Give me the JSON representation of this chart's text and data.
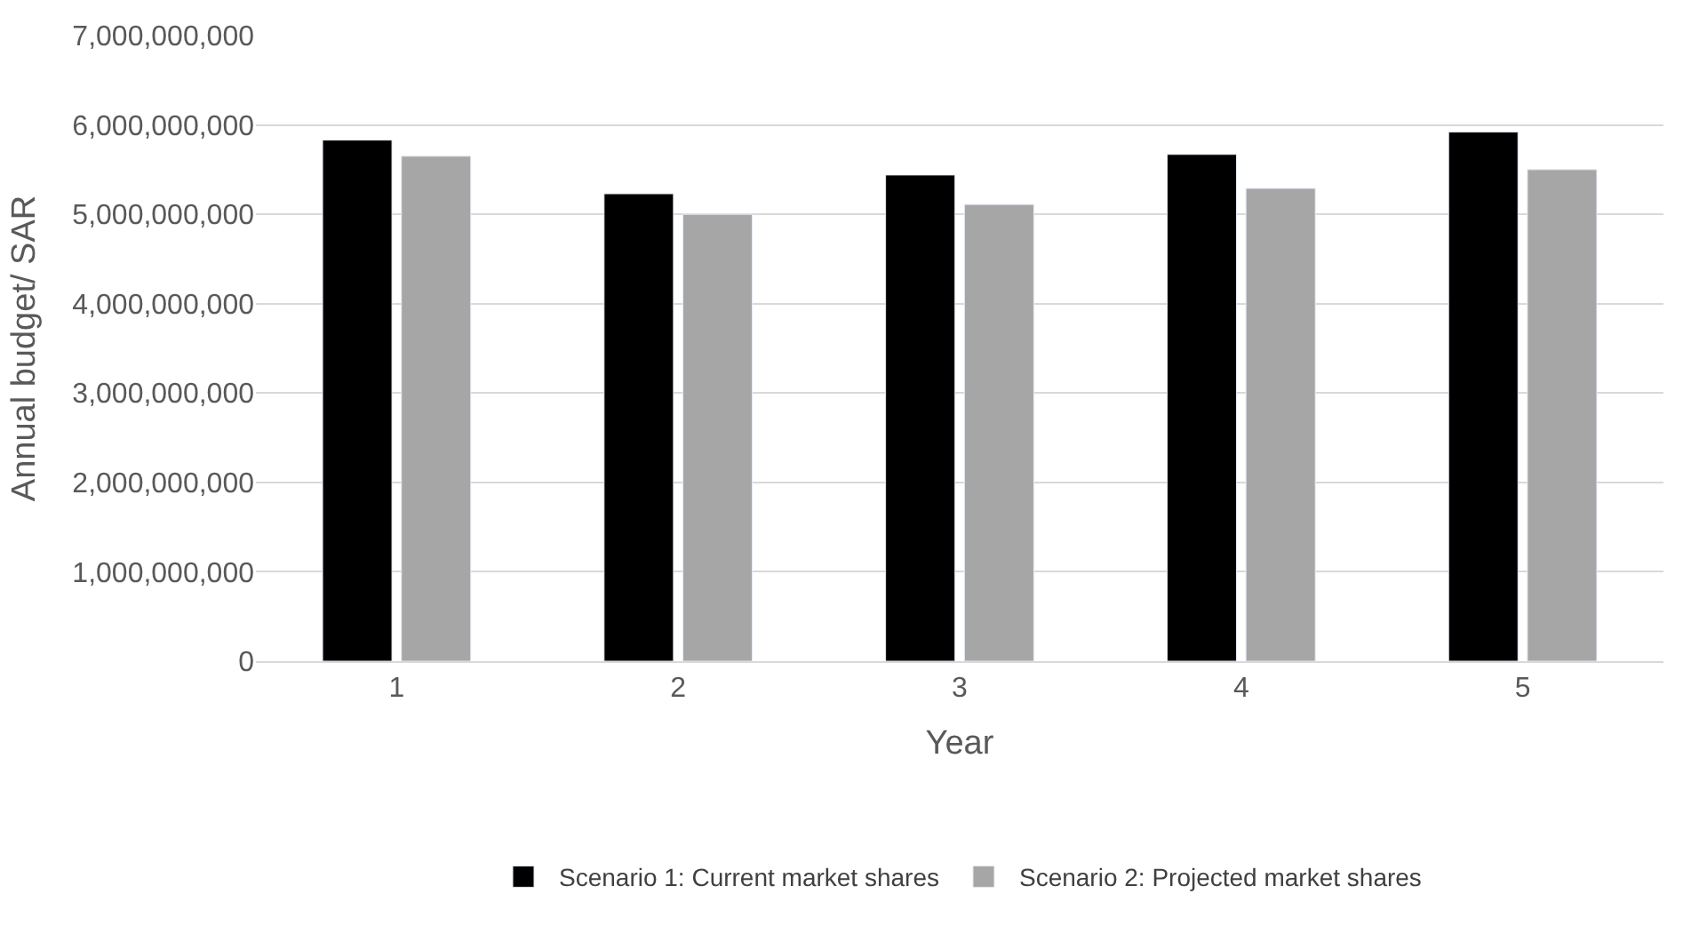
{
  "chart_data": {
    "type": "bar",
    "xlabel": "Year",
    "ylabel": "Annual budget/ SAR",
    "categories": [
      "1",
      "2",
      "3",
      "4",
      "5"
    ],
    "series": [
      {
        "name": "Scenario 1: Current market shares",
        "color": "#000000",
        "values": [
          5830000000,
          5230000000,
          5440000000,
          5670000000,
          5920000000
        ]
      },
      {
        "name": "Scenario 2: Projected market shares",
        "color": "#a6a6a6",
        "values": [
          5650000000,
          5000000000,
          5110000000,
          5290000000,
          5500000000
        ]
      }
    ],
    "ylim": [
      0,
      7000000000
    ],
    "yticks": [
      {
        "value": 0,
        "label": "0"
      },
      {
        "value": 1000000000,
        "label": "1,000,000,000"
      },
      {
        "value": 2000000000,
        "label": "2,000,000,000"
      },
      {
        "value": 3000000000,
        "label": "3,000,000,000"
      },
      {
        "value": 4000000000,
        "label": "4,000,000,000"
      },
      {
        "value": 5000000000,
        "label": "5,000,000,000"
      },
      {
        "value": 6000000000,
        "label": "6,000,000,000"
      },
      {
        "value": 7000000000,
        "label": "7,000,000,000"
      }
    ],
    "grid": "y",
    "legend": "bottom"
  }
}
